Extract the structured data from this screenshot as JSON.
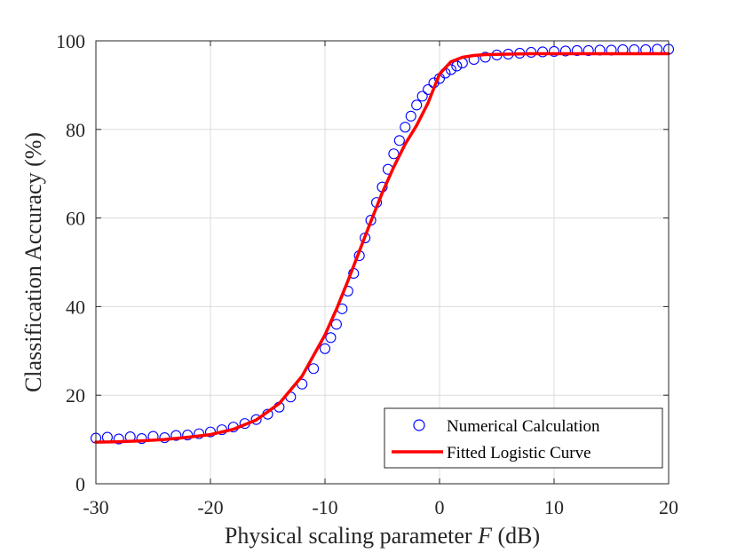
{
  "chart_data": {
    "type": "scatter",
    "title": "",
    "xlabel_prefix": "Physical scaling parameter ",
    "xlabel_var": "F",
    "xlabel_suffix": " (dB)",
    "ylabel": "Classification Accuracy (%)",
    "xlim": [
      -30,
      20
    ],
    "ylim": [
      0,
      100
    ],
    "xticks": [
      -30,
      -20,
      -10,
      0,
      10,
      20
    ],
    "yticks": [
      0,
      20,
      40,
      60,
      80,
      100
    ],
    "grid": true,
    "legend_position": "bottom-right",
    "series": [
      {
        "name": "Numerical Calculation",
        "kind": "scatter",
        "marker": "circle-open",
        "color": "#0000ff",
        "x": [
          -30,
          -29,
          -28,
          -27,
          -26,
          -25,
          -24,
          -23,
          -22,
          -21,
          -20,
          -19,
          -18,
          -17,
          -16,
          -15,
          -14,
          -13,
          -12,
          -11,
          -10,
          -9.5,
          -9,
          -8.5,
          -8,
          -7.5,
          -7,
          -6.5,
          -6,
          -5.5,
          -5,
          -4.5,
          -4,
          -3.5,
          -3,
          -2.5,
          -2,
          -1.5,
          -1,
          -0.5,
          0,
          0.5,
          1,
          1.5,
          2,
          3,
          4,
          5,
          6,
          7,
          8,
          9,
          10,
          11,
          12,
          13,
          14,
          15,
          16,
          17,
          18,
          19,
          20
        ],
        "y": [
          10.3,
          10.5,
          10.1,
          10.6,
          10.2,
          10.7,
          10.4,
          10.9,
          11.0,
          11.3,
          11.7,
          12.2,
          12.8,
          13.6,
          14.5,
          15.7,
          17.3,
          19.6,
          22.5,
          26.0,
          30.5,
          33.0,
          36.0,
          39.5,
          43.5,
          47.5,
          51.5,
          55.5,
          59.5,
          63.5,
          67.0,
          71.0,
          74.5,
          77.5,
          80.5,
          83.0,
          85.5,
          87.5,
          89.0,
          90.5,
          91.5,
          92.7,
          93.5,
          94.3,
          95.0,
          95.8,
          96.3,
          96.8,
          97.0,
          97.2,
          97.4,
          97.5,
          97.6,
          97.7,
          97.8,
          97.8,
          97.9,
          97.9,
          98.0,
          98.0,
          98.0,
          98.1,
          98.1
        ]
      },
      {
        "name": "Fitted Logistic Curve",
        "kind": "line",
        "color": "#ff0000",
        "x": [
          -30,
          -28,
          -26,
          -24,
          -22,
          -20,
          -18,
          -16,
          -14,
          -12,
          -10,
          -9,
          -8,
          -7,
          -6,
          -5,
          -4,
          -3,
          -2,
          -1,
          0,
          1,
          2,
          3,
          4,
          6,
          8,
          10,
          12,
          14,
          16,
          18,
          20
        ],
        "y": [
          9.4,
          9.5,
          9.7,
          10.0,
          10.5,
          11.1,
          12.3,
          14.4,
          18.1,
          24.3,
          33.6,
          39.4,
          45.8,
          52.5,
          59.2,
          65.7,
          71.5,
          76.7,
          80.9,
          86.0,
          92.5,
          95.3,
          96.3,
          96.7,
          96.9,
          97.0,
          97.1,
          97.1,
          97.1,
          97.1,
          97.1,
          97.1,
          97.1
        ]
      }
    ]
  }
}
